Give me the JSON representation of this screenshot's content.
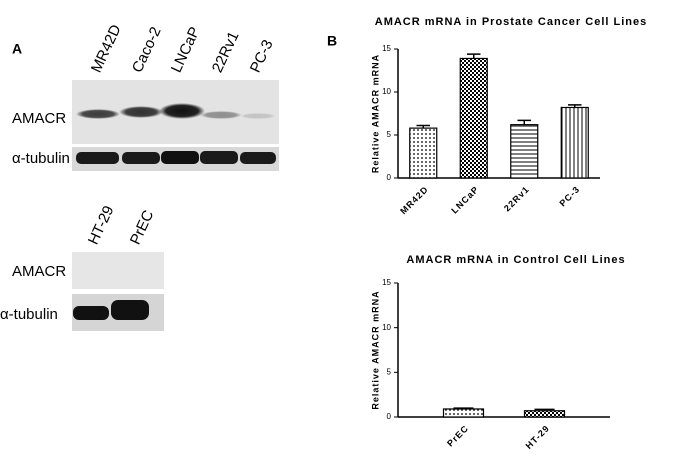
{
  "panel_labels": [
    "A",
    "B"
  ],
  "blot_top": {
    "lanes": [
      "MR42D",
      "Caco-2",
      "LNCaP",
      "22Rv1",
      "PC-3"
    ],
    "rows": [
      "AMACR",
      "α-tubulin"
    ]
  },
  "blot_bottom": {
    "lanes": [
      "HT-29",
      "PrEC"
    ],
    "rows": [
      "AMACR",
      "α-tubulin"
    ]
  },
  "chart_data": [
    {
      "type": "bar",
      "title": "AMACR mRNA in Prostate Cancer Cell Lines",
      "y_label": "Relative AMACR mRNA",
      "categories": [
        "MR42D",
        "LNCaP",
        "22Rv1",
        "PC-3"
      ],
      "values": [
        5.8,
        13.9,
        6.2,
        8.2
      ],
      "errors": [
        0.3,
        0.5,
        0.5,
        0.3
      ],
      "patterns": [
        "dots",
        "checker",
        "hlines",
        "vlines"
      ],
      "color": "#000000",
      "ylim": [
        0,
        15
      ],
      "yticks": [
        0,
        5,
        10,
        15
      ]
    },
    {
      "type": "bar",
      "title": "AMACR mRNA in Control Cell Lines",
      "y_label": "Relative AMACR mRNA",
      "categories": [
        "PrEC",
        "HT-29"
      ],
      "values": [
        0.9,
        0.7
      ],
      "errors": [
        0.1,
        0.15
      ],
      "patterns": [
        "dots",
        "checker"
      ],
      "color": "#000000",
      "ylim": [
        0,
        15
      ],
      "yticks": [
        0,
        5,
        10,
        15
      ]
    }
  ]
}
